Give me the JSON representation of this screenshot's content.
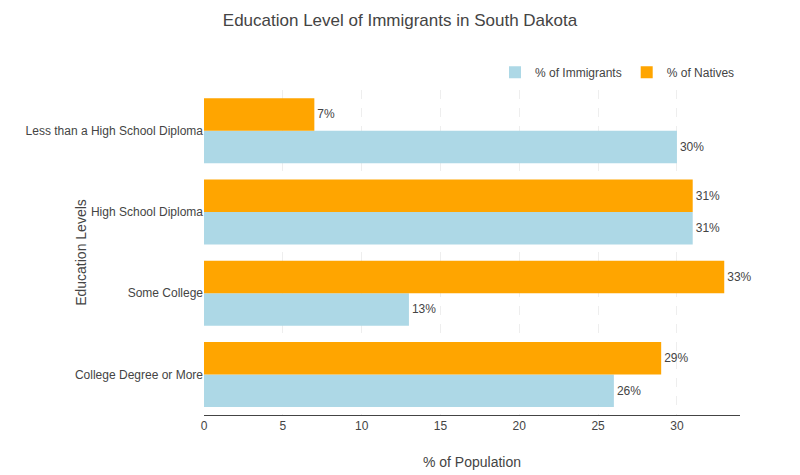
{
  "chart_data": {
    "type": "bar",
    "orientation": "horizontal",
    "title": "Education Level of Immigrants in South Dakota",
    "xlabel": "% of Population",
    "ylabel": "Education Levels",
    "categories": [
      "College Degree or More",
      "Some College",
      "High School Diploma",
      "Less than a High School Diploma"
    ],
    "series": [
      {
        "name": "% of Immigrants",
        "color": "#ADD8E6",
        "values": [
          26,
          13,
          31,
          30
        ],
        "value_labels": [
          "26%",
          "13%",
          "31%",
          "30%"
        ]
      },
      {
        "name": "% of Natives",
        "color": "#FFA500",
        "values": [
          29,
          33,
          31,
          7
        ],
        "value_labels": [
          "29%",
          "33%",
          "31%",
          "7%"
        ]
      }
    ],
    "xlim": [
      0,
      34
    ],
    "xticks": [
      0,
      5,
      10,
      15,
      20,
      25,
      30
    ],
    "grid": true,
    "legend": "upper right",
    "data_labels": true
  }
}
